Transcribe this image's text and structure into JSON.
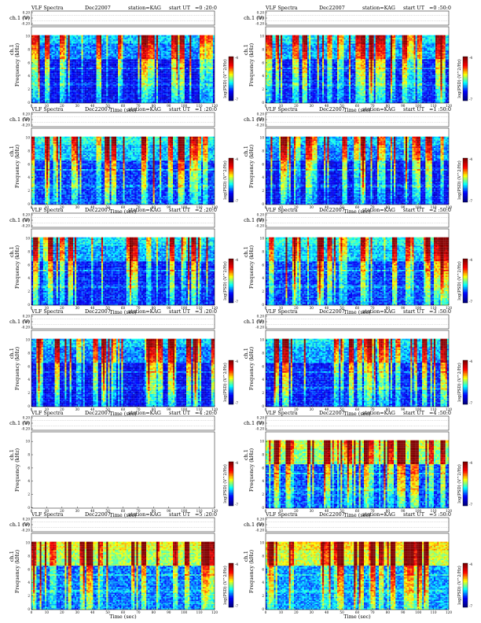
{
  "header": {
    "title": "VLF Spectra",
    "date": "Dec22007",
    "station": "station=KAG",
    "start_label": "start  UT"
  },
  "labels": {
    "ch_top": "ch.1",
    "ch_top_unit": "(V)",
    "ch_spec": "ch.1",
    "freq": "Frequency",
    "freq_unit": "(kHz)",
    "xlabel": "Time",
    "xlabel_unit": "(sec)",
    "colorbar": "log(PSD) (V^2/Hz)"
  },
  "colors": {
    "background": "#ffffff",
    "colormap": [
      "#000080",
      "#0000ff",
      "#00ffff",
      "#ffff00",
      "#ff0000",
      "#800000"
    ]
  },
  "chart_data": [
    {
      "type": "heatmap",
      "title": "VLF Spectra",
      "start_time": "=0 :20:0",
      "has_data": true,
      "xlim": [
        0,
        120
      ],
      "ylim": [
        0,
        10
      ],
      "x_ticks": [
        "0",
        "10",
        "20",
        "30",
        "40",
        "50",
        "60",
        "70",
        "80",
        "90",
        "100",
        "110",
        "120"
      ],
      "y_ticks": [
        "0",
        "2",
        "4",
        "6",
        "8",
        "10"
      ],
      "top_ticks": [
        "0.20",
        "0.00",
        "-0.20"
      ],
      "xlabel": "Time (sec)",
      "ylabel": "Frequency (kHz)",
      "colorbar_label": "log(PSD) (V^2/Hz)",
      "colorbar_ticks": [
        "-4",
        "-7"
      ],
      "colormap": "jet"
    },
    {
      "type": "heatmap",
      "title": "VLF Spectra",
      "start_time": "=0 :50:0",
      "has_data": true,
      "xlim": [
        0,
        120
      ],
      "ylim": [
        0,
        10
      ],
      "x_ticks": [
        "0",
        "10",
        "20",
        "30",
        "40",
        "50",
        "60",
        "70",
        "80",
        "90",
        "100",
        "110",
        "120"
      ],
      "y_ticks": [
        "0",
        "2",
        "4",
        "6",
        "8",
        "10"
      ],
      "top_ticks": [
        "0.20",
        "0.00",
        "-0.20"
      ],
      "xlabel": "Time (sec)",
      "ylabel": "Frequency (kHz)",
      "colorbar_label": "log(PSD) (V^2/Hz)",
      "colorbar_ticks": [
        "-4",
        "-7"
      ],
      "colormap": "jet"
    },
    {
      "type": "heatmap",
      "title": "VLF Spectra",
      "start_time": "=1 :20:0",
      "has_data": true,
      "xlim": [
        0,
        120
      ],
      "ylim": [
        0,
        10
      ],
      "x_ticks": [
        "0",
        "10",
        "20",
        "30",
        "40",
        "50",
        "60",
        "70",
        "80",
        "90",
        "100",
        "110",
        "120"
      ],
      "y_ticks": [
        "0",
        "2",
        "4",
        "6",
        "8",
        "10"
      ],
      "top_ticks": [
        "0.20",
        "0.00",
        "-0.20"
      ],
      "xlabel": "Time (sec)",
      "ylabel": "Frequency (kHz)",
      "colorbar_label": "log(PSD) (V^2/Hz)",
      "colorbar_ticks": [
        "-4",
        "-7"
      ],
      "colormap": "jet"
    },
    {
      "type": "heatmap",
      "title": "VLF Spectra",
      "start_time": "=1 :50:0",
      "has_data": true,
      "xlim": [
        0,
        120
      ],
      "ylim": [
        0,
        10
      ],
      "x_ticks": [
        "0",
        "10",
        "20",
        "30",
        "40",
        "50",
        "60",
        "70",
        "80",
        "90",
        "100",
        "110",
        "120"
      ],
      "y_ticks": [
        "0",
        "2",
        "4",
        "6",
        "8",
        "10"
      ],
      "top_ticks": [
        "0.20",
        "0.00",
        "-0.20"
      ],
      "xlabel": "Time (sec)",
      "ylabel": "Frequency (kHz)",
      "colorbar_label": "log(PSD) (V^2/Hz)",
      "colorbar_ticks": [
        "-4",
        "-7"
      ],
      "colormap": "jet"
    },
    {
      "type": "heatmap",
      "title": "VLF Spectra",
      "start_time": "=2 :20:0",
      "has_data": true,
      "xlim": [
        0,
        120
      ],
      "ylim": [
        0,
        10
      ],
      "x_ticks": [
        "0",
        "10",
        "20",
        "30",
        "40",
        "50",
        "60",
        "70",
        "80",
        "90",
        "100",
        "110",
        "120"
      ],
      "y_ticks": [
        "0",
        "2",
        "4",
        "6",
        "8",
        "10"
      ],
      "top_ticks": [
        "0.20",
        "0.00",
        "-0.20"
      ],
      "xlabel": "Time (sec)",
      "ylabel": "Frequency (kHz)",
      "colorbar_label": "log(PSD) (V^2/Hz)",
      "colorbar_ticks": [
        "-4",
        "-7"
      ],
      "colormap": "jet"
    },
    {
      "type": "heatmap",
      "title": "VLF Spectra",
      "start_time": "=2 :50:0",
      "has_data": true,
      "xlim": [
        0,
        120
      ],
      "ylim": [
        0,
        10
      ],
      "x_ticks": [
        "0",
        "10",
        "20",
        "30",
        "40",
        "50",
        "60",
        "70",
        "80",
        "90",
        "100",
        "110",
        "120"
      ],
      "y_ticks": [
        "0",
        "2",
        "4",
        "6",
        "8",
        "10"
      ],
      "top_ticks": [
        "0.20",
        "0.00",
        "-0.20"
      ],
      "xlabel": "Time (sec)",
      "ylabel": "Frequency (kHz)",
      "colorbar_label": "log(PSD) (V^2/Hz)",
      "colorbar_ticks": [
        "-4",
        "-7"
      ],
      "colormap": "jet"
    },
    {
      "type": "heatmap",
      "title": "VLF Spectra",
      "start_time": "=3 :20:0",
      "has_data": true,
      "xlim": [
        0,
        120
      ],
      "ylim": [
        0,
        10
      ],
      "x_ticks": [
        "0",
        "10",
        "20",
        "30",
        "40",
        "50",
        "60",
        "70",
        "80",
        "90",
        "100",
        "110",
        "120"
      ],
      "y_ticks": [
        "0",
        "2",
        "4",
        "6",
        "8",
        "10"
      ],
      "top_ticks": [
        "0.20",
        "0.00",
        "-0.20"
      ],
      "xlabel": "Time (sec)",
      "ylabel": "Frequency (kHz)",
      "colorbar_label": "log(PSD) (V^2/Hz)",
      "colorbar_ticks": [
        "-4",
        "-7"
      ],
      "colormap": "jet"
    },
    {
      "type": "heatmap",
      "title": "VLF Spectra",
      "start_time": "=3 :50:0",
      "has_data": true,
      "xlim": [
        0,
        120
      ],
      "ylim": [
        0,
        10
      ],
      "x_ticks": [
        "0",
        "10",
        "20",
        "30",
        "40",
        "50",
        "60",
        "70",
        "80",
        "90",
        "100",
        "110",
        "120"
      ],
      "y_ticks": [
        "0",
        "2",
        "4",
        "6",
        "8",
        "10"
      ],
      "top_ticks": [
        "0.20",
        "0.00",
        "-0.20"
      ],
      "xlabel": "Time (sec)",
      "ylabel": "Frequency (kHz)",
      "colorbar_label": "log(PSD) (V^2/Hz)",
      "colorbar_ticks": [
        "-4",
        "-7"
      ],
      "colormap": "jet"
    },
    {
      "type": "heatmap",
      "title": "VLF Spectra",
      "start_time": "=4 :20:0",
      "has_data": false,
      "xlim": [
        0,
        120
      ],
      "ylim": [
        0,
        10
      ],
      "x_ticks": [
        "0",
        "10",
        "20",
        "30",
        "40",
        "50",
        "60",
        "70",
        "80",
        "90",
        "100",
        "110",
        "120"
      ],
      "y_ticks": [
        "0",
        "2",
        "4",
        "6",
        "8",
        "10"
      ],
      "top_ticks": [
        "0.20",
        "0.00",
        "-0.20"
      ],
      "xlabel": "Time (sec)",
      "ylabel": "Frequency (kHz)",
      "colorbar_label": "log(PSD) (V^2/Hz)",
      "colorbar_ticks": [
        "-4",
        "-7"
      ],
      "colormap": "jet"
    },
    {
      "type": "heatmap",
      "title": "VLF Spectra",
      "start_time": "=4 :50:0",
      "has_data": true,
      "xlim": [
        0,
        120
      ],
      "ylim": [
        0,
        10
      ],
      "x_ticks": [
        "0",
        "10",
        "20",
        "30",
        "40",
        "50",
        "60",
        "70",
        "80",
        "90",
        "100",
        "110",
        "120"
      ],
      "y_ticks": [
        "0",
        "2",
        "4",
        "6",
        "8",
        "10"
      ],
      "top_ticks": [
        "0.20",
        "0.00",
        "-0.20"
      ],
      "xlabel": "Time (sec)",
      "ylabel": "Frequency (kHz)",
      "colorbar_label": "log(PSD) (V^2/Hz)",
      "colorbar_ticks": [
        "-4",
        "-7"
      ],
      "colormap": "jet"
    },
    {
      "type": "heatmap",
      "title": "VLF Spectra",
      "start_time": "=5 :20:0",
      "has_data": true,
      "xlim": [
        0,
        120
      ],
      "ylim": [
        0,
        10
      ],
      "x_ticks": [
        "0",
        "10",
        "20",
        "30",
        "40",
        "50",
        "60",
        "70",
        "80",
        "90",
        "100",
        "110",
        "120"
      ],
      "y_ticks": [
        "0",
        "2",
        "4",
        "6",
        "8",
        "10"
      ],
      "top_ticks": [
        "0.20",
        "0.00",
        "-0.20"
      ],
      "xlabel": "Time (sec)",
      "ylabel": "Frequency (kHz)",
      "colorbar_label": "log(PSD) (V^2/Hz)",
      "colorbar_ticks": [
        "-4",
        "-7"
      ],
      "colormap": "jet"
    },
    {
      "type": "heatmap",
      "title": "VLF Spectra",
      "start_time": "=5 :50:0",
      "has_data": true,
      "xlim": [
        0,
        120
      ],
      "ylim": [
        0,
        10
      ],
      "x_ticks": [
        "0",
        "10",
        "20",
        "30",
        "40",
        "50",
        "60",
        "70",
        "80",
        "90",
        "100",
        "110",
        "120"
      ],
      "y_ticks": [
        "0",
        "2",
        "4",
        "6",
        "8",
        "10"
      ],
      "top_ticks": [
        "0.20",
        "0.00",
        "-0.20"
      ],
      "xlabel": "Time (sec)",
      "ylabel": "Frequency (kHz)",
      "colorbar_label": "log(PSD) (V^2/Hz)",
      "colorbar_ticks": [
        "-4",
        "-7"
      ],
      "colormap": "jet"
    }
  ]
}
